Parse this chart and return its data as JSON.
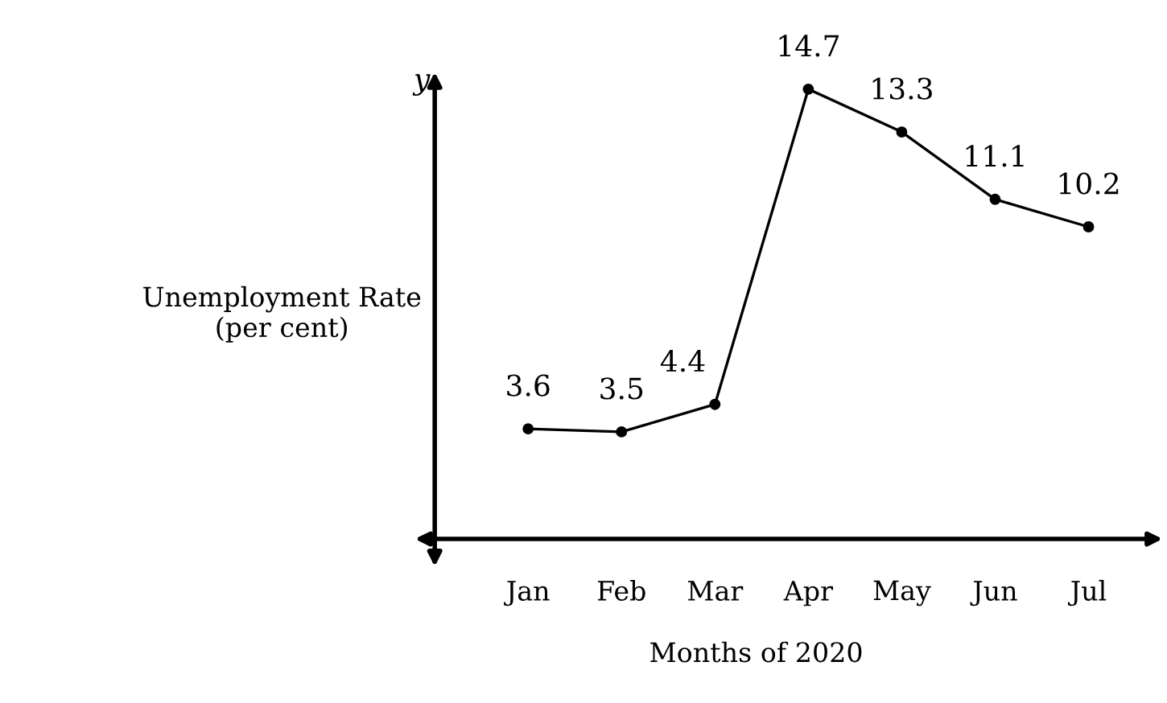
{
  "chart_data": {
    "type": "line",
    "xlabel": "Months of 2020",
    "ylabel": "Unemployment Rate\n(per cent)",
    "annotations": [
      "y"
    ],
    "categories": [
      "Jan",
      "Feb",
      "Mar",
      "Apr",
      "May",
      "Jun",
      "Jul"
    ],
    "series": [
      {
        "color": "#000000",
        "values": [
          3.6,
          3.5,
          4.4,
          14.7,
          13.3,
          11.1,
          10.2
        ]
      }
    ],
    "data_labels": true,
    "marker": "circle",
    "line_style": "solid",
    "grid": false,
    "legend": false
  }
}
